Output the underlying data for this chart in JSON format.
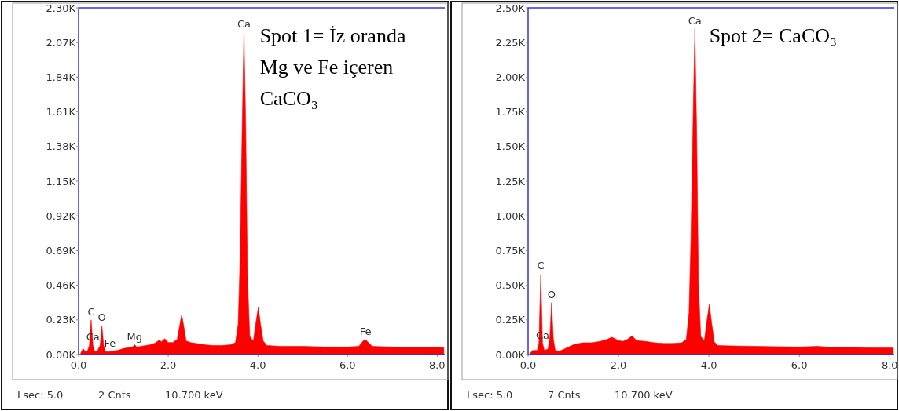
{
  "chart_data": [
    {
      "type": "area",
      "title": "Spot 1= İz oranda\nMg ve Fe içeren\nCaCO₃",
      "grid": false,
      "xlim": [
        0,
        8.17
      ],
      "ylim": [
        0,
        2300
      ],
      "xticks": [
        {
          "value": 0,
          "label": "0.0"
        },
        {
          "value": 2,
          "label": "2.0"
        },
        {
          "value": 4,
          "label": "4.0"
        },
        {
          "value": 6,
          "label": "6.0"
        },
        {
          "value": 8,
          "label": "8.0"
        }
      ],
      "yticks": [
        {
          "value": 0,
          "label": "0.00K"
        },
        {
          "value": 230,
          "label": "0.23K"
        },
        {
          "value": 460,
          "label": "0.46K"
        },
        {
          "value": 690,
          "label": "0.69K"
        },
        {
          "value": 920,
          "label": "0.92K"
        },
        {
          "value": 1150,
          "label": "1.15K"
        },
        {
          "value": 1380,
          "label": "1.38K"
        },
        {
          "value": 1610,
          "label": "1.61K"
        },
        {
          "value": 1840,
          "label": "1.84K"
        },
        {
          "value": 2070,
          "label": "2.07K"
        },
        {
          "value": 2300,
          "label": "2.30K"
        }
      ],
      "series": [
        {
          "color": "#ff0000",
          "x": [
            0.05,
            0.1,
            0.15,
            0.2,
            0.24,
            0.28,
            0.32,
            0.36,
            0.42,
            0.48,
            0.52,
            0.56,
            0.6,
            0.7,
            0.8,
            0.9,
            1.0,
            1.1,
            1.2,
            1.25,
            1.3,
            1.4,
            1.5,
            1.6,
            1.7,
            1.8,
            1.85,
            1.92,
            2.0,
            2.1,
            2.2,
            2.26,
            2.3,
            2.34,
            2.4,
            2.5,
            2.6,
            2.8,
            3.0,
            3.2,
            3.4,
            3.5,
            3.56,
            3.6,
            3.65,
            3.69,
            3.73,
            3.77,
            3.82,
            3.9,
            3.95,
            4.01,
            4.06,
            4.12,
            4.2,
            4.5,
            5.0,
            5.5,
            6.0,
            6.25,
            6.35,
            6.4,
            6.45,
            6.55,
            7.0,
            7.5,
            8.0,
            8.15
          ],
          "values": [
            10,
            40,
            20,
            25,
            60,
            230,
            60,
            20,
            25,
            60,
            190,
            60,
            20,
            20,
            25,
            30,
            40,
            45,
            50,
            65,
            50,
            55,
            60,
            65,
            75,
            95,
            85,
            105,
            80,
            80,
            100,
            200,
            265,
            200,
            90,
            80,
            75,
            65,
            60,
            60,
            65,
            80,
            200,
            600,
            1500,
            2140,
            1500,
            500,
            120,
            90,
            200,
            313,
            200,
            90,
            60,
            55,
            55,
            50,
            50,
            55,
            90,
            100,
            85,
            55,
            50,
            48,
            48,
            45
          ]
        }
      ],
      "annotations": [
        {
          "text": "Ca",
          "x": 3.69,
          "y": 2140
        },
        {
          "text": "C",
          "x": 0.28,
          "y": 230
        },
        {
          "text": "O",
          "x": 0.52,
          "y": 190
        },
        {
          "text": "Ca",
          "x": 0.32,
          "y": 60
        },
        {
          "text": "Fe",
          "x": 0.7,
          "y": 20
        },
        {
          "text": "Mg",
          "x": 1.25,
          "y": 65
        },
        {
          "text": "Fe",
          "x": 6.4,
          "y": 100
        },
        "Lsec: 5.0",
        "2 Cnts",
        "10.700 keV"
      ]
    },
    {
      "type": "area",
      "title": "Spot 2= CaCO₃",
      "grid": false,
      "xlim": [
        0,
        8.1
      ],
      "ylim": [
        0,
        2500
      ],
      "xticks": [
        {
          "value": 0,
          "label": "0.0"
        },
        {
          "value": 2,
          "label": "2.0"
        },
        {
          "value": 4,
          "label": "4.0"
        },
        {
          "value": 6,
          "label": "6.0"
        },
        {
          "value": 8,
          "label": "8.0"
        }
      ],
      "yticks": [
        {
          "value": 0,
          "label": "0.00K"
        },
        {
          "value": 250,
          "label": "0.25K"
        },
        {
          "value": 500,
          "label": "0.50K"
        },
        {
          "value": 750,
          "label": "0.75K"
        },
        {
          "value": 1000,
          "label": "1.00K"
        },
        {
          "value": 1250,
          "label": "1.25K"
        },
        {
          "value": 1500,
          "label": "1.50K"
        },
        {
          "value": 1750,
          "label": "1.75K"
        },
        {
          "value": 2000,
          "label": "2.00K"
        },
        {
          "value": 2250,
          "label": "2.25K"
        },
        {
          "value": 2500,
          "label": "2.50K"
        }
      ],
      "series": [
        {
          "color": "#ff0000",
          "x": [
            0.05,
            0.1,
            0.2,
            0.24,
            0.28,
            0.32,
            0.36,
            0.44,
            0.48,
            0.52,
            0.56,
            0.6,
            0.7,
            0.8,
            0.9,
            1.0,
            1.2,
            1.4,
            1.6,
            1.75,
            1.85,
            1.92,
            2.0,
            2.1,
            2.2,
            2.3,
            2.4,
            2.6,
            2.8,
            3.0,
            3.2,
            3.4,
            3.5,
            3.56,
            3.6,
            3.65,
            3.69,
            3.73,
            3.77,
            3.82,
            3.9,
            3.95,
            4.01,
            4.06,
            4.12,
            4.2,
            4.5,
            5.0,
            5.5,
            6.0,
            6.4,
            6.6,
            7.0,
            7.5,
            8.0,
            8.08
          ],
          "values": [
            10,
            30,
            30,
            80,
            580,
            80,
            30,
            40,
            120,
            375,
            110,
            30,
            25,
            40,
            55,
            70,
            85,
            85,
            95,
            110,
            125,
            115,
            100,
            95,
            110,
            135,
            100,
            95,
            85,
            80,
            80,
            85,
            110,
            300,
            800,
            1700,
            2350,
            1600,
            500,
            130,
            100,
            230,
            364,
            230,
            90,
            65,
            62,
            60,
            57,
            54,
            60,
            54,
            52,
            50,
            48,
            48
          ]
        }
      ],
      "annotations": [
        {
          "text": "Ca",
          "x": 3.69,
          "y": 2350
        },
        {
          "text": "C",
          "x": 0.28,
          "y": 580
        },
        {
          "text": "O",
          "x": 0.52,
          "y": 375
        },
        {
          "text": "Ca",
          "x": 0.32,
          "y": 80
        },
        "Lsec: 5.0",
        "7 Cnts",
        "10.700 keV"
      ]
    }
  ]
}
